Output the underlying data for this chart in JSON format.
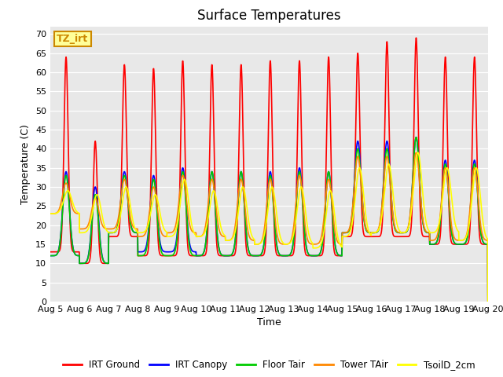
{
  "title": "Surface Temperatures",
  "xlabel": "Time",
  "ylabel": "Temperature (C)",
  "ylim": [
    0,
    72
  ],
  "yticks": [
    0,
    5,
    10,
    15,
    20,
    25,
    30,
    35,
    40,
    45,
    50,
    55,
    60,
    65,
    70
  ],
  "xtick_labels": [
    "Aug 5",
    "Aug 6",
    "Aug 7",
    "Aug 8",
    "Aug 9",
    "Aug 10",
    "Aug 11",
    "Aug 12",
    "Aug 13",
    "Aug 14",
    "Aug 15",
    "Aug 16",
    "Aug 17",
    "Aug 18",
    "Aug 19",
    "Aug 20"
  ],
  "plot_bg_color": "#e8e8e8",
  "lines": {
    "IRT Ground": {
      "color": "#ff0000",
      "linewidth": 1.2
    },
    "IRT Canopy": {
      "color": "#0000ff",
      "linewidth": 1.2
    },
    "Floor Tair": {
      "color": "#00cc00",
      "linewidth": 1.2
    },
    "Tower TAir": {
      "color": "#ff8800",
      "linewidth": 1.2
    },
    "TsoilD_2cm": {
      "color": "#ffff00",
      "linewidth": 1.2
    }
  },
  "annotation_text": "TZ_irt",
  "annotation_color": "#cc8800",
  "annotation_bg": "#ffff99",
  "title_fontsize": 12,
  "label_fontsize": 9,
  "tick_fontsize": 8,
  "legend_fontsize": 8.5,
  "n_days": 15,
  "irt_ground_peaks": [
    64,
    42,
    62,
    61,
    63,
    62,
    62,
    63,
    63,
    64,
    65,
    68,
    69,
    64,
    64
  ],
  "irt_ground_nights": [
    13,
    10,
    17,
    12,
    12,
    12,
    12,
    12,
    12,
    12,
    17,
    17,
    17,
    15,
    15
  ],
  "irt_canopy_peaks": [
    34,
    30,
    34,
    33,
    35,
    34,
    34,
    34,
    35,
    34,
    42,
    42,
    43,
    37,
    37
  ],
  "irt_canopy_nights": [
    12,
    10,
    18,
    13,
    13,
    12,
    12,
    12,
    12,
    12,
    18,
    18,
    18,
    15,
    15
  ],
  "floor_tair_peaks": [
    33,
    28,
    33,
    32,
    34,
    34,
    34,
    33,
    34,
    34,
    40,
    40,
    43,
    36,
    36
  ],
  "floor_tair_nights": [
    12,
    10,
    18,
    12,
    12,
    12,
    12,
    12,
    12,
    12,
    18,
    18,
    18,
    15,
    15
  ],
  "tower_tair_peaks": [
    31,
    27,
    32,
    30,
    33,
    32,
    32,
    32,
    33,
    32,
    38,
    38,
    39,
    35,
    35
  ],
  "tower_tair_nights": [
    23,
    19,
    19,
    17,
    18,
    17,
    16,
    15,
    15,
    15,
    18,
    18,
    18,
    16,
    16
  ],
  "tsoil_peaks": [
    29,
    28,
    30,
    28,
    32,
    29,
    30,
    30,
    30,
    29,
    35,
    36,
    39,
    35,
    35
  ],
  "tsoil_nights": [
    23,
    18,
    18,
    18,
    17,
    17,
    16,
    15,
    15,
    14,
    17,
    18,
    18,
    18,
    16
  ]
}
